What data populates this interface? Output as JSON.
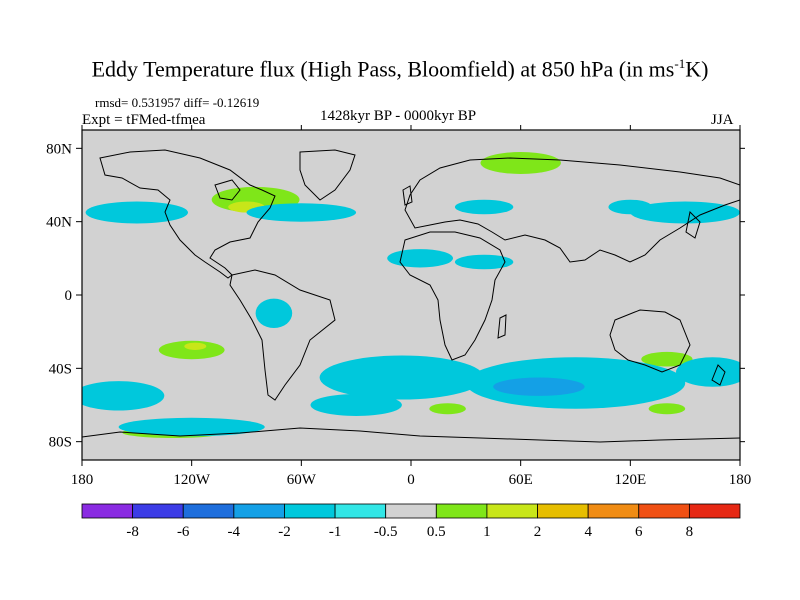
{
  "chart_data": {
    "type": "heatmap",
    "title_main": "Eddy Temperature flux (High Pass, Bloomfield) at 850 hPa (in ms",
    "title_sup": "-1",
    "title_end": "K)",
    "rmsd_text": "rmsd= 0.531957 diff= -0.12619",
    "expt_text": "Expt = tFMed-tfmea",
    "period": "1428kyr BP - 0000kyr BP",
    "season": "JJA",
    "xlim": [
      -180,
      180
    ],
    "ylim": [
      -90,
      90
    ],
    "x_ticks": [
      {
        "value": -180,
        "label": "180"
      },
      {
        "value": -120,
        "label": "120W"
      },
      {
        "value": -60,
        "label": "60W"
      },
      {
        "value": 0,
        "label": "0"
      },
      {
        "value": 60,
        "label": "60E"
      },
      {
        "value": 120,
        "label": "120E"
      },
      {
        "value": 180,
        "label": "180"
      }
    ],
    "y_ticks": [
      {
        "value": 80,
        "label": "80N"
      },
      {
        "value": 40,
        "label": "40N"
      },
      {
        "value": 0,
        "label": "0"
      },
      {
        "value": -40,
        "label": "40S"
      },
      {
        "value": -80,
        "label": "80S"
      }
    ],
    "levels": [
      "-8",
      "-6",
      "-4",
      "-2",
      "-1",
      "-0.5",
      "0.5",
      "1",
      "2",
      "4",
      "6",
      "8"
    ],
    "colors": [
      "#8a2be2",
      "#3c3ce6",
      "#1e6edc",
      "#14a0e6",
      "#00c8dc",
      "#32e6e6",
      "#d2d2d2",
      "#7fe619",
      "#c8e619",
      "#e6be00",
      "#f08c14",
      "#f05014",
      "#e62814"
    ],
    "anomalies": [
      {
        "lon": 60,
        "lat": 72,
        "rx": 22,
        "ry": 6,
        "bin": 7
      },
      {
        "lon": 40,
        "lat": 70,
        "rx": 28,
        "ry": 10,
        "bin": 6
      },
      {
        "lon": -85,
        "lat": 52,
        "rx": 24,
        "ry": 7,
        "bin": 7
      },
      {
        "lon": -90,
        "lat": 48,
        "rx": 10,
        "ry": 3,
        "bin": 8
      },
      {
        "lon": -30,
        "lat": 52,
        "rx": 14,
        "ry": 5,
        "bin": 6
      },
      {
        "lon": 5,
        "lat": 45,
        "rx": 12,
        "ry": 5,
        "bin": 6
      },
      {
        "lon": 135,
        "lat": 58,
        "rx": 18,
        "ry": 6,
        "bin": 6
      },
      {
        "lon": -170,
        "lat": 65,
        "rx": 10,
        "ry": 5,
        "bin": 6
      },
      {
        "lon": -150,
        "lat": 45,
        "rx": 28,
        "ry": 6,
        "bin": 4
      },
      {
        "lon": -60,
        "lat": 45,
        "rx": 30,
        "ry": 5,
        "bin": 4
      },
      {
        "lon": 40,
        "lat": 48,
        "rx": 16,
        "ry": 4,
        "bin": 4
      },
      {
        "lon": 150,
        "lat": 45,
        "rx": 30,
        "ry": 6,
        "bin": 4
      },
      {
        "lon": 120,
        "lat": 48,
        "rx": 12,
        "ry": 4,
        "bin": 4
      },
      {
        "lon": 5,
        "lat": 20,
        "rx": 18,
        "ry": 5,
        "bin": 4
      },
      {
        "lon": 40,
        "lat": 18,
        "rx": 16,
        "ry": 4,
        "bin": 4
      },
      {
        "lon": -75,
        "lat": -10,
        "rx": 10,
        "ry": 8,
        "bin": 4
      },
      {
        "lon": -120,
        "lat": -30,
        "rx": 34,
        "ry": 8,
        "bin": 6
      },
      {
        "lon": -120,
        "lat": -30,
        "rx": 18,
        "ry": 5,
        "bin": 7
      },
      {
        "lon": -118,
        "lat": -28,
        "rx": 6,
        "ry": 2,
        "bin": 8
      },
      {
        "lon": -5,
        "lat": -45,
        "rx": 45,
        "ry": 12,
        "bin": 4
      },
      {
        "lon": -30,
        "lat": -60,
        "rx": 25,
        "ry": 6,
        "bin": 4
      },
      {
        "lon": 90,
        "lat": -48,
        "rx": 60,
        "ry": 14,
        "bin": 4
      },
      {
        "lon": 70,
        "lat": -50,
        "rx": 25,
        "ry": 5,
        "bin": 3
      },
      {
        "lon": 165,
        "lat": -42,
        "rx": 20,
        "ry": 8,
        "bin": 4
      },
      {
        "lon": 140,
        "lat": -35,
        "rx": 14,
        "ry": 4,
        "bin": 7
      },
      {
        "lon": -160,
        "lat": -55,
        "rx": 25,
        "ry": 8,
        "bin": 4
      },
      {
        "lon": -120,
        "lat": -72,
        "rx": 40,
        "ry": 5,
        "bin": 4
      },
      {
        "lon": -130,
        "lat": -75,
        "rx": 28,
        "ry": 3,
        "bin": 7
      },
      {
        "lon": 20,
        "lat": -62,
        "rx": 10,
        "ry": 3,
        "bin": 7
      },
      {
        "lon": 140,
        "lat": -62,
        "rx": 10,
        "ry": 3,
        "bin": 7
      }
    ]
  }
}
